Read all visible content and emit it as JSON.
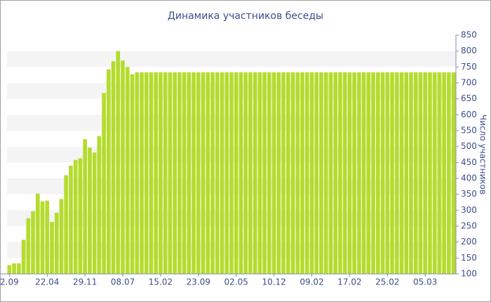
{
  "chart_data": {
    "type": "bar",
    "title": "Динамика участников беседы",
    "y_label": "Число участников",
    "categories": [
      "2.09",
      null,
      null,
      null,
      null,
      null,
      null,
      null,
      "22.04",
      null,
      null,
      null,
      null,
      null,
      null,
      null,
      "29.11",
      null,
      null,
      null,
      null,
      null,
      null,
      null,
      "08.07",
      null,
      null,
      null,
      null,
      null,
      null,
      null,
      "15.02",
      null,
      null,
      null,
      null,
      null,
      null,
      null,
      "23.09",
      null,
      null,
      null,
      null,
      null,
      null,
      null,
      "02.05",
      null,
      null,
      null,
      null,
      null,
      null,
      null,
      "10.12",
      null,
      null,
      null,
      null,
      null,
      null,
      null,
      "09.02",
      null,
      null,
      null,
      null,
      null,
      null,
      null,
      "17.02",
      null,
      null,
      null,
      null,
      null,
      null,
      null,
      "25.02",
      null,
      null,
      null,
      null,
      null,
      null,
      null,
      "05.03",
      null,
      null,
      null,
      null,
      null,
      null
    ],
    "values": [
      128,
      133,
      133,
      207,
      275,
      297,
      352,
      328,
      330,
      263,
      292,
      335,
      410,
      440,
      458,
      463,
      523,
      497,
      481,
      533,
      668,
      742,
      768,
      800,
      770,
      750,
      727,
      733,
      733,
      733,
      733,
      733,
      733,
      733,
      733,
      733,
      733,
      733,
      733,
      733,
      733,
      733,
      733,
      733,
      733,
      733,
      733,
      733,
      733,
      733,
      733,
      733,
      733,
      733,
      733,
      733,
      733,
      733,
      733,
      733,
      733,
      733,
      733,
      733,
      733,
      733,
      733,
      733,
      733,
      733,
      733,
      733,
      733,
      733,
      733,
      733,
      733,
      733,
      733,
      733,
      733,
      733,
      733,
      733,
      733,
      733,
      733,
      733,
      733,
      733,
      733,
      733,
      733,
      733,
      733
    ],
    "color": "#b4dc2e",
    "ylim": [
      100,
      850
    ],
    "yticks": [
      100,
      150,
      200,
      250,
      300,
      350,
      400,
      450,
      500,
      550,
      600,
      650,
      700,
      750,
      800,
      850
    ],
    "grid": true
  }
}
